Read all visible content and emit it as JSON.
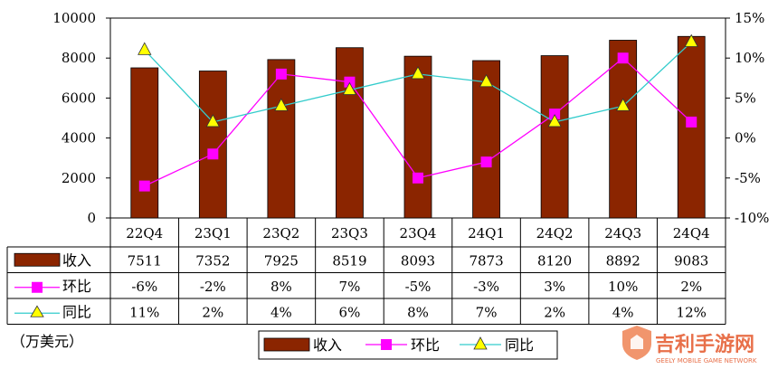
{
  "chart_data": {
    "type": "bar+line",
    "categories": [
      "22Q4",
      "23Q1",
      "23Q2",
      "23Q3",
      "23Q4",
      "24Q1",
      "24Q2",
      "24Q3",
      "24Q4"
    ],
    "series": [
      {
        "name": "收入",
        "kind": "bar",
        "axis": "left",
        "color": "#8b2500",
        "values": [
          7511,
          7352,
          7925,
          8519,
          8093,
          7873,
          8120,
          8892,
          9083
        ],
        "labels": [
          "7511",
          "7352",
          "7925",
          "8519",
          "8093",
          "7873",
          "8120",
          "8892",
          "9083"
        ]
      },
      {
        "name": "环比",
        "kind": "line",
        "axis": "right",
        "color": "#ff00ff",
        "marker": "square",
        "values": [
          -6,
          -2,
          8,
          7,
          -5,
          -3,
          3,
          10,
          2
        ],
        "labels": [
          "-6%",
          "-2%",
          "8%",
          "7%",
          "-5%",
          "-3%",
          "3%",
          "10%",
          "2%"
        ]
      },
      {
        "name": "同比",
        "kind": "line",
        "axis": "right",
        "color": "#33cccc",
        "marker": "triangle",
        "marker_fill": "#ffff00",
        "values": [
          11,
          2,
          4,
          6,
          8,
          7,
          2,
          4,
          12
        ],
        "labels": [
          "11%",
          "2%",
          "4%",
          "6%",
          "8%",
          "7%",
          "2%",
          "4%",
          "12%"
        ]
      }
    ],
    "y_left": {
      "min": 0,
      "max": 10000,
      "ticks": [
        0,
        2000,
        4000,
        6000,
        8000,
        10000
      ],
      "tick_labels": [
        "0",
        "2000",
        "4000",
        "6000",
        "8000",
        "10000"
      ]
    },
    "y_right": {
      "min": -10,
      "max": 15,
      "ticks": [
        -10,
        -5,
        0,
        5,
        10,
        15
      ],
      "tick_labels": [
        "-10%",
        "-5%",
        "0%",
        "5%",
        "10%",
        "15%"
      ]
    },
    "unit_label": "（万美元）",
    "legend": [
      "收入",
      "环比",
      "同比"
    ],
    "grid": false
  },
  "watermark": {
    "title": "吉利手游网",
    "subtitle": "GEELY MOBILE GAME NETWORK"
  }
}
